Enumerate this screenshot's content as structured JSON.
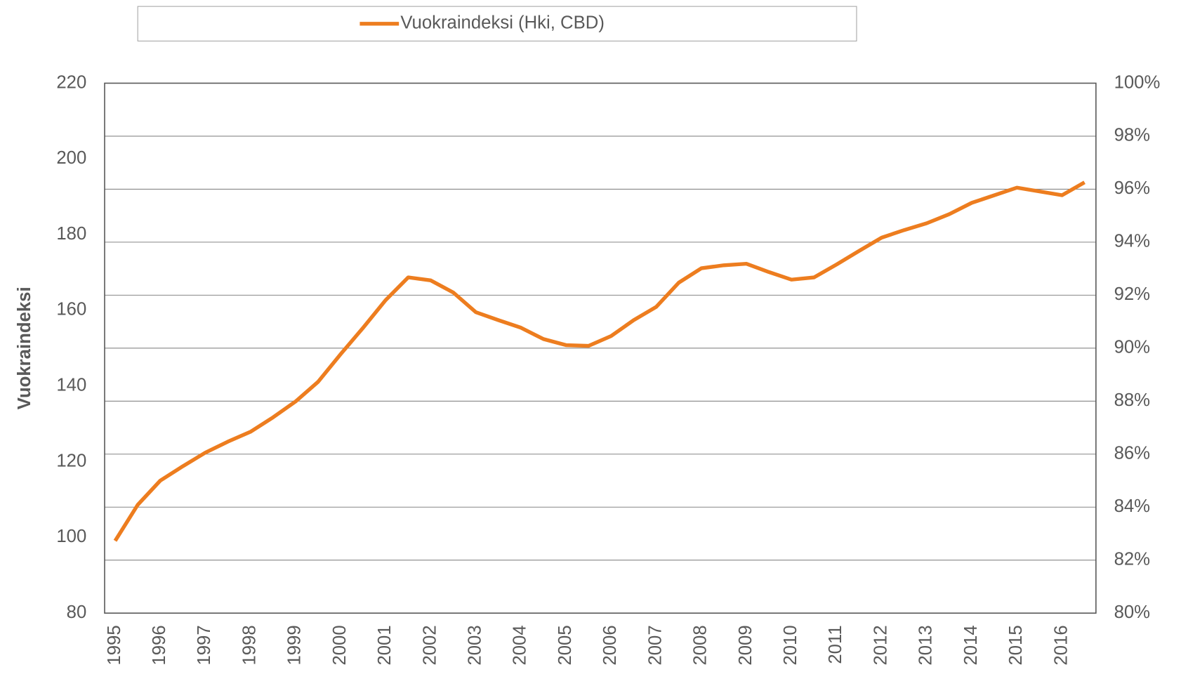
{
  "chart_data": {
    "type": "line",
    "legend": "top",
    "y_label": "Vuokraindeksi",
    "categories": [
      "1995",
      null,
      "1996",
      null,
      "1997",
      null,
      "1998",
      null,
      "1999",
      null,
      "2000",
      null,
      "2001",
      null,
      "2002",
      null,
      "2003",
      null,
      "2004",
      null,
      "2005",
      null,
      "2006",
      null,
      "2007",
      null,
      "2008",
      null,
      "2009",
      null,
      "2010",
      null,
      "2011",
      null,
      "2012",
      null,
      "2013",
      null,
      "2014",
      null,
      "2015",
      null,
      "2016",
      null
    ],
    "series": [
      {
        "name": "Vuokraindeksi (Hki, CBD)",
        "color": "#ed7d1f",
        "values": [
          99.1,
          108.6,
          115.0,
          118.8,
          122.4,
          125.3,
          127.9,
          131.7,
          135.9,
          141.1,
          148.4,
          155.4,
          162.7,
          168.7,
          167.9,
          164.7,
          159.5,
          157.4,
          155.4,
          152.4,
          150.8,
          150.6,
          153.2,
          157.4,
          160.9,
          167.3,
          171.1,
          171.9,
          172.3,
          170.1,
          168.1,
          168.7,
          172.1,
          175.7,
          179.2,
          181.2,
          183.0,
          185.4,
          188.4,
          190.4,
          192.4,
          191.4,
          190.4,
          193.8
        ]
      }
    ],
    "ylim": [
      80,
      220
    ],
    "yticks": [
      80,
      100,
      120,
      140,
      160,
      180,
      200,
      220
    ],
    "y2lim": [
      80,
      100
    ],
    "y2ticks": [
      {
        "value": 80,
        "label": "80%"
      },
      {
        "value": 82,
        "label": "82%"
      },
      {
        "value": 84,
        "label": "84%"
      },
      {
        "value": 86,
        "label": "86%"
      },
      {
        "value": 88,
        "label": "88%"
      },
      {
        "value": 90,
        "label": "90%"
      },
      {
        "value": 92,
        "label": "92%"
      },
      {
        "value": 94,
        "label": "94%"
      },
      {
        "value": 96,
        "label": "96%"
      },
      {
        "value": 98,
        "label": "98%"
      },
      {
        "value": 100,
        "label": "100%"
      }
    ],
    "grid": "y2"
  }
}
